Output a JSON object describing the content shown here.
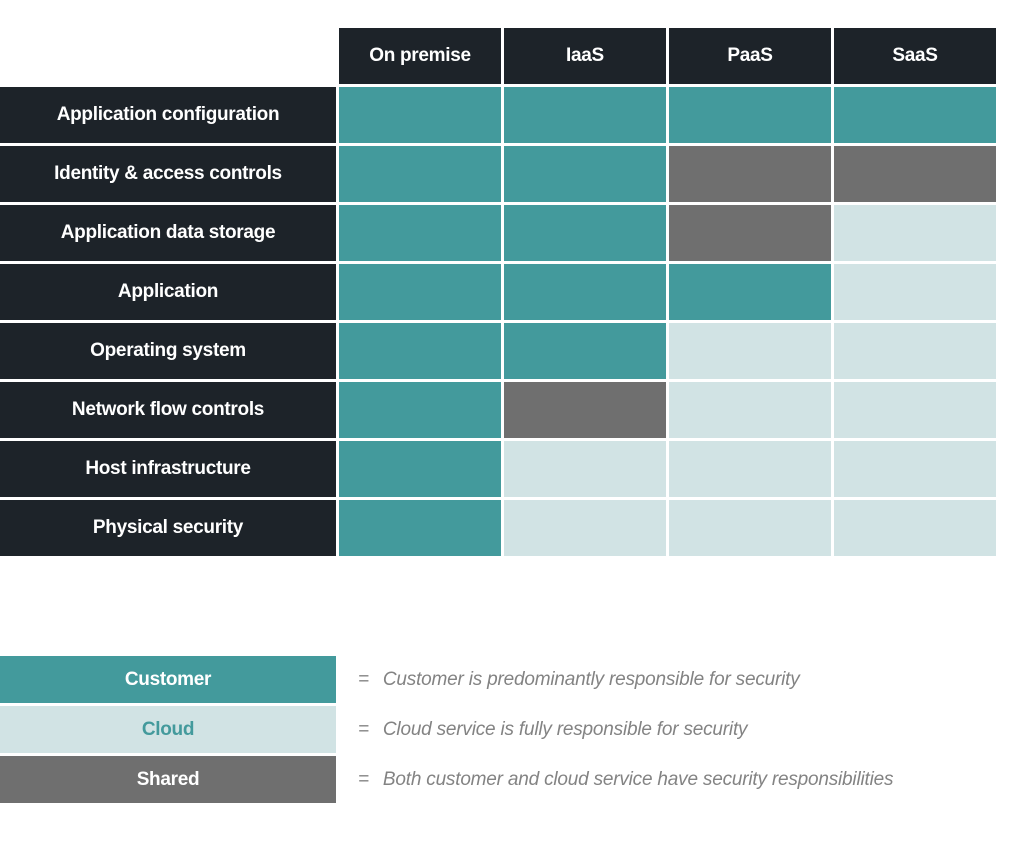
{
  "colors": {
    "dark": "#1d2329",
    "customer": "#439a9c",
    "cloud": "#d1e3e4",
    "shared": "#6f6f6f",
    "legend_text": "#838383",
    "white": "#ffffff"
  },
  "matrix": {
    "columns": [
      "On premise",
      "IaaS",
      "PaaS",
      "SaaS"
    ],
    "rows": [
      {
        "label": "Application configuration",
        "cells": [
          "customer",
          "customer",
          "customer",
          "customer"
        ]
      },
      {
        "label": "Identity & access controls",
        "cells": [
          "customer",
          "customer",
          "shared",
          "shared"
        ]
      },
      {
        "label": "Application data storage",
        "cells": [
          "customer",
          "customer",
          "shared",
          "cloud"
        ]
      },
      {
        "label": "Application",
        "cells": [
          "customer",
          "customer",
          "customer",
          "cloud"
        ]
      },
      {
        "label": "Operating system",
        "cells": [
          "customer",
          "customer",
          "cloud",
          "cloud"
        ]
      },
      {
        "label": "Network flow controls",
        "cells": [
          "customer",
          "shared",
          "cloud",
          "cloud"
        ]
      },
      {
        "label": "Host infrastructure",
        "cells": [
          "customer",
          "cloud",
          "cloud",
          "cloud"
        ]
      },
      {
        "label": "Physical security",
        "cells": [
          "customer",
          "cloud",
          "cloud",
          "cloud"
        ]
      }
    ]
  },
  "legend": {
    "items": [
      {
        "key": "customer",
        "label": "Customer",
        "equals": "=",
        "description": "Customer is predominantly responsible for security"
      },
      {
        "key": "cloud",
        "label": "Cloud",
        "equals": "=",
        "description": "Cloud service is fully responsible for security"
      },
      {
        "key": "shared",
        "label": "Shared",
        "equals": "=",
        "description": "Both customer and cloud service have security responsibilities"
      }
    ]
  }
}
